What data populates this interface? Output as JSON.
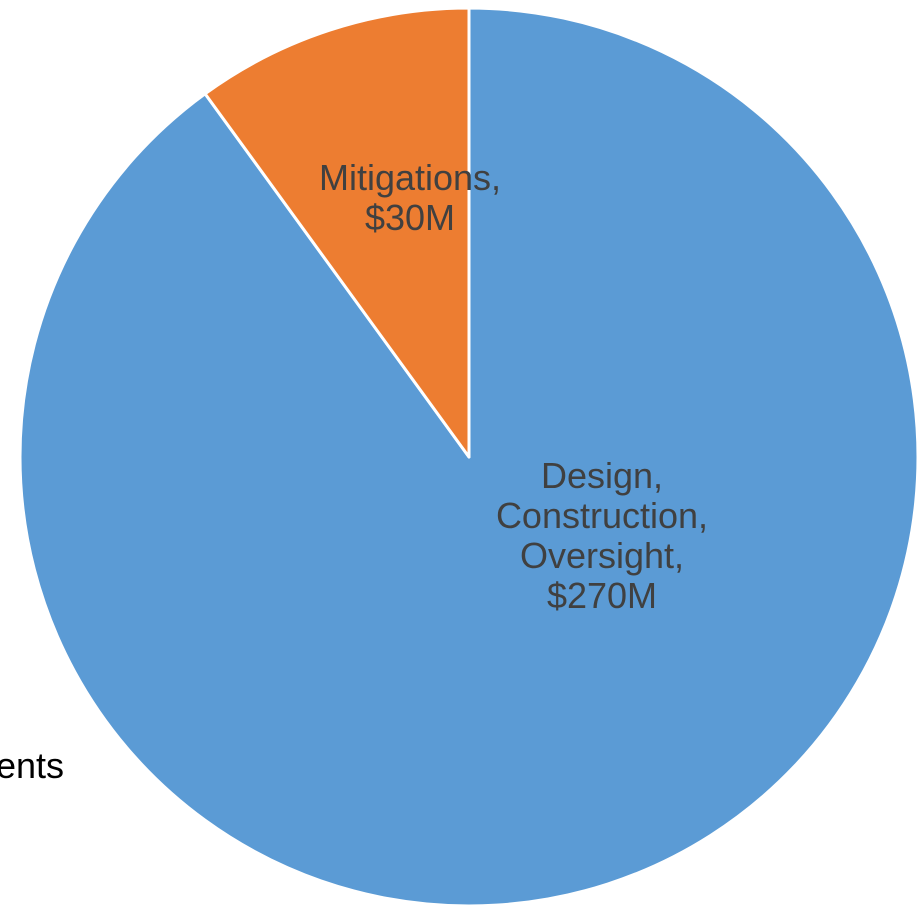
{
  "chart_data": {
    "type": "pie",
    "start_angle": "12 o'clock, clockwise",
    "slices": [
      {
        "name": "Design, Construction, Oversight",
        "value": 270,
        "label_lines": [
          "Design,",
          "Construction,",
          "Oversight,",
          "$270M"
        ],
        "color": "#5B9BD5"
      },
      {
        "name": "Mitigations",
        "value": 30,
        "label_lines": [
          "Mitigations,",
          "$30M"
        ],
        "color": "#ED7D31"
      }
    ],
    "unit": "$M",
    "legend": "none"
  },
  "background_fragment": {
    "text": "ents"
  }
}
